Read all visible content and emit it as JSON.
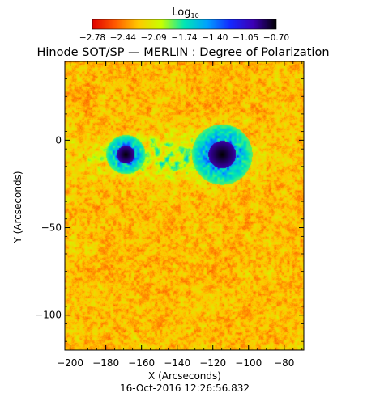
{
  "colorbar": {
    "label_main": "Log",
    "label_sub": "10",
    "ticks": [
      "−2.78",
      "−2.44",
      "−2.09",
      "−1.74",
      "−1.40",
      "−1.05",
      "−0.70"
    ],
    "colors": [
      "#e00000",
      "#ff5a00",
      "#ffc800",
      "#c8ff00",
      "#00e6b4",
      "#00a0ff",
      "#1428ff",
      "#3c00b4",
      "#000000"
    ]
  },
  "chart_data": {
    "type": "heatmap",
    "title": "Hinode SOT/SP — MERLIN : Degree of Polarization",
    "xlabel": "X (Arcseconds)",
    "ylabel": "Y (Arcseconds)",
    "xlim": [
      -203,
      -69
    ],
    "ylim": [
      -120,
      45
    ],
    "x_ticks": [
      {
        "v": -200,
        "label": "−200"
      },
      {
        "v": -180,
        "label": "−180"
      },
      {
        "v": -160,
        "label": "−160"
      },
      {
        "v": -140,
        "label": "−140"
      },
      {
        "v": -120,
        "label": "−120"
      },
      {
        "v": -100,
        "label": "−100"
      },
      {
        "v": -80,
        "label": "−80"
      }
    ],
    "y_ticks": [
      {
        "v": 0,
        "label": "0"
      },
      {
        "v": -50,
        "label": "−50"
      },
      {
        "v": -100,
        "label": "−100"
      }
    ],
    "color_scale": "log10",
    "value_range": [
      -2.78,
      -0.7
    ],
    "features": [
      {
        "name": "sunspot",
        "x": -115,
        "y": -8
      },
      {
        "name": "pore",
        "x": -169,
        "y": -8
      }
    ],
    "timestamp": "16-Oct-2016 12:26:56.832"
  }
}
